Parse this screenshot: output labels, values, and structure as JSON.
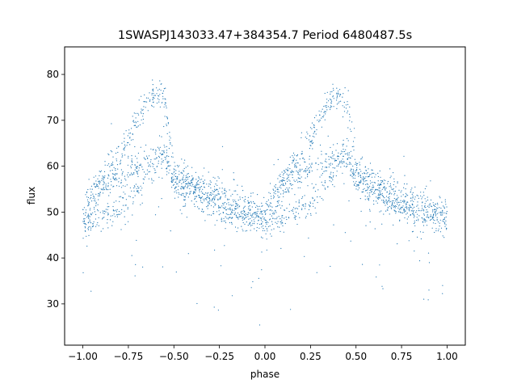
{
  "chart_data": {
    "type": "scatter",
    "title": "1SWASPJ143033.47+384354.7 Period 6480487.5s",
    "xlabel": "phase",
    "ylabel": "flux",
    "xlim": [
      -1.1,
      1.1
    ],
    "ylim": [
      21,
      86
    ],
    "xticks": [
      -1.0,
      -0.75,
      -0.5,
      -0.25,
      0.0,
      0.25,
      0.5,
      0.75,
      1.0
    ],
    "xtick_labels": [
      "−1.00",
      "−0.75",
      "−0.50",
      "−0.25",
      "0.00",
      "0.25",
      "0.50",
      "0.75",
      "1.00"
    ],
    "yticks": [
      30,
      40,
      50,
      60,
      70,
      80
    ],
    "ytick_labels": [
      "30",
      "40",
      "50",
      "60",
      "70",
      "80"
    ],
    "grid": false,
    "marker_color": "#1f77b4",
    "series": [
      {
        "x": [
          -1.0,
          -0.95,
          -0.9,
          -0.85,
          -0.8,
          -0.75,
          -0.7,
          -0.65,
          -0.6,
          -0.55,
          -0.5,
          -0.45,
          -0.4,
          -0.35,
          -0.3,
          -0.25,
          -0.2,
          -0.15,
          -0.1,
          -0.05,
          0.0,
          0.05,
          0.1,
          0.15,
          0.2,
          0.25,
          0.3,
          0.35,
          0.4,
          0.45,
          0.5,
          0.55,
          0.6,
          0.65,
          0.7,
          0.75,
          0.8,
          0.85,
          0.9,
          0.95,
          1.0
        ],
        "y_upper": [
          50,
          55,
          58,
          60,
          63,
          66,
          70,
          74,
          76,
          74,
          60,
          58,
          57,
          56,
          55,
          54,
          53,
          52,
          52,
          51,
          50,
          55,
          58,
          60,
          63,
          66,
          70,
          74,
          76,
          74,
          60,
          58,
          57,
          56,
          55,
          54,
          53,
          52,
          52,
          51,
          50
        ],
        "y_middle": [
          47,
          52,
          55,
          57,
          58,
          59,
          60,
          61,
          62,
          63,
          56,
          55,
          54,
          53,
          52,
          51,
          50,
          50,
          49,
          49,
          48,
          52,
          55,
          57,
          58,
          59,
          60,
          61,
          62,
          63,
          56,
          55,
          54,
          53,
          52,
          51,
          50,
          50,
          49,
          49,
          47
        ],
        "y_lower": [
          46,
          48,
          49,
          50,
          51,
          52,
          54,
          57,
          60,
          62,
          57,
          56,
          55,
          53,
          52,
          51,
          50,
          49,
          48,
          48,
          47,
          48,
          49,
          50,
          51,
          52,
          54,
          57,
          60,
          62,
          57,
          56,
          55,
          53,
          52,
          51,
          50,
          49,
          48,
          48,
          46
        ]
      }
    ]
  }
}
